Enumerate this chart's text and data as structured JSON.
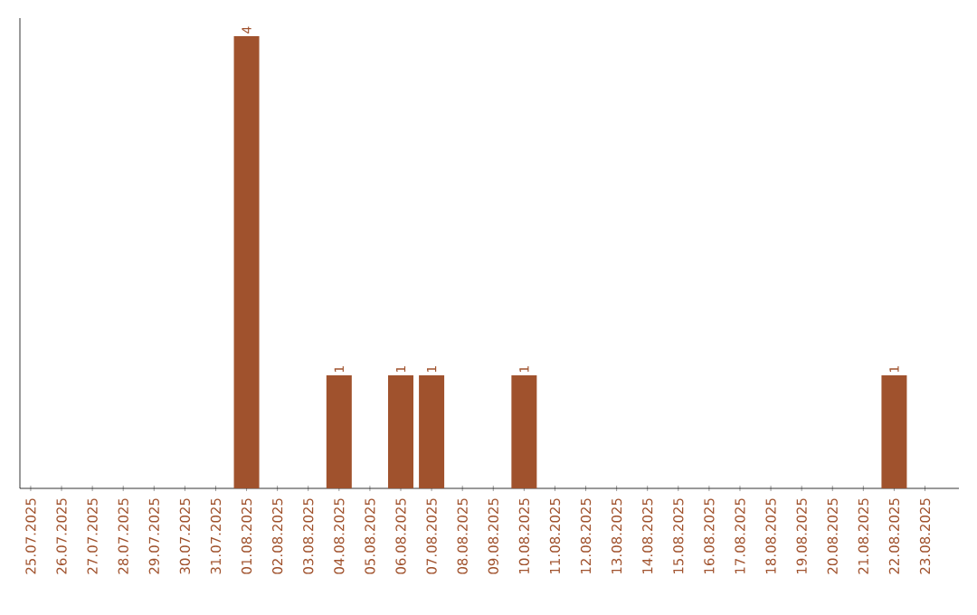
{
  "chart_data": {
    "type": "bar",
    "categories": [
      "25.07.2025",
      "26.07.2025",
      "27.07.2025",
      "28.07.2025",
      "29.07.2025",
      "30.07.2025",
      "31.07.2025",
      "01.08.2025",
      "02.08.2025",
      "03.08.2025",
      "04.08.2025",
      "05.08.2025",
      "06.08.2025",
      "07.08.2025",
      "08.08.2025",
      "09.08.2025",
      "10.08.2025",
      "11.08.2025",
      "12.08.2025",
      "13.08.2025",
      "14.08.2025",
      "15.08.2025",
      "16.08.2025",
      "17.08.2025",
      "18.08.2025",
      "19.08.2025",
      "20.08.2025",
      "21.08.2025",
      "22.08.2025",
      "23.08.2025"
    ],
    "values": [
      0,
      0,
      0,
      0,
      0,
      0,
      0,
      4,
      0,
      0,
      1,
      0,
      1,
      1,
      0,
      0,
      1,
      0,
      0,
      0,
      0,
      0,
      0,
      0,
      0,
      0,
      0,
      0,
      1,
      0
    ],
    "value_labels": [
      null,
      null,
      null,
      null,
      null,
      null,
      null,
      "4",
      null,
      null,
      "1",
      null,
      "1",
      "1",
      null,
      null,
      "1",
      null,
      null,
      null,
      null,
      null,
      null,
      null,
      null,
      null,
      null,
      null,
      "1",
      null
    ],
    "color": "#a0522d",
    "tick_labels": "x"
  }
}
